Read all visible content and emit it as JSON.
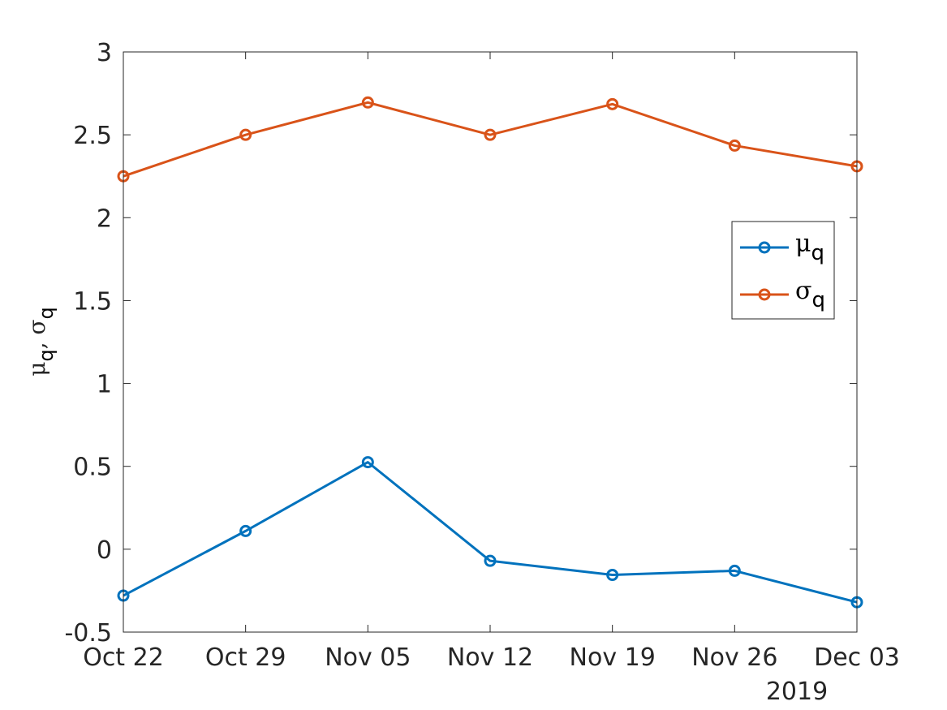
{
  "chart_data": {
    "type": "line",
    "x": [
      "Oct 22",
      "Oct 29",
      "Nov 05",
      "Nov 12",
      "Nov 19",
      "Nov 26",
      "Dec 03"
    ],
    "x_secondary_label": "2019",
    "ylabel": {
      "mu": "μ",
      "mu_sub": "q",
      "sep": ", ",
      "sigma": "σ",
      "sigma_sub": "q"
    },
    "ylim": [
      -0.5,
      3
    ],
    "yticks": [
      -0.5,
      0,
      0.5,
      1,
      1.5,
      2,
      2.5,
      3
    ],
    "ytick_labels": [
      "-0.5",
      "0",
      "0.5",
      "1",
      "1.5",
      "2",
      "2.5",
      "3"
    ],
    "grid": false,
    "legend_placement": "right",
    "series": [
      {
        "name": "μ",
        "name_sub": "q",
        "color": "#0072BD",
        "marker": "circle",
        "values": [
          -0.28,
          0.11,
          0.525,
          -0.07,
          -0.155,
          -0.13,
          -0.32
        ]
      },
      {
        "name": "σ",
        "name_sub": "q",
        "color": "#D95319",
        "marker": "circle",
        "values": [
          2.25,
          2.5,
          2.695,
          2.5,
          2.685,
          2.435,
          2.31
        ]
      }
    ]
  }
}
